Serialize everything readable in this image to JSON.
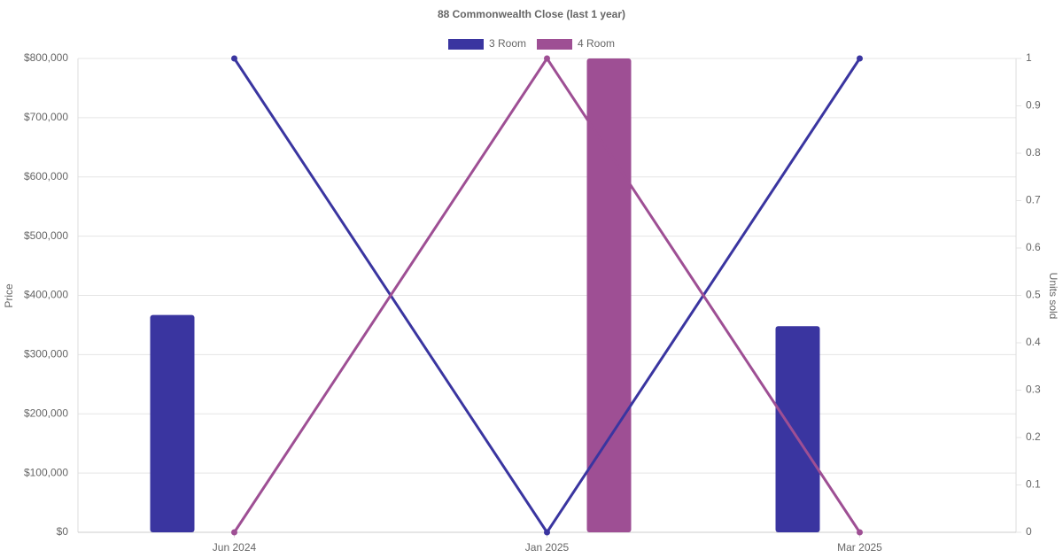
{
  "chart_data": {
    "type": "bar",
    "title": "88 Commonwealth Close (last 1 year)",
    "y_label": "Price",
    "y2_label": "Units sold",
    "categories": [
      "Jun 2024",
      "Jan 2025",
      "Mar 2025"
    ],
    "series": [
      {
        "name": "3 Room",
        "color": "#3a35a0",
        "values": [
          367000,
          null,
          348000
        ],
        "units_sold": [
          1,
          0,
          1
        ]
      },
      {
        "name": "4 Room",
        "color": "#9e4f94",
        "values": [
          null,
          800000,
          null
        ],
        "units_sold": [
          0,
          1,
          0
        ]
      }
    ],
    "ylim": [
      0,
      800000
    ],
    "yticks": [
      {
        "value": 0,
        "label": "$0"
      },
      {
        "value": 100000,
        "label": "$100,000"
      },
      {
        "value": 200000,
        "label": "$200,000"
      },
      {
        "value": 300000,
        "label": "$300,000"
      },
      {
        "value": 400000,
        "label": "$400,000"
      },
      {
        "value": 500000,
        "label": "$500,000"
      },
      {
        "value": 600000,
        "label": "$600,000"
      },
      {
        "value": 700000,
        "label": "$700,000"
      },
      {
        "value": 800000,
        "label": "$800,000"
      }
    ],
    "y2lim": [
      0,
      1
    ],
    "y2ticks": [
      0,
      0.1,
      0.2,
      0.3,
      0.4,
      0.5,
      0.6,
      0.7,
      0.8,
      0.9,
      1
    ],
    "grid": true
  }
}
